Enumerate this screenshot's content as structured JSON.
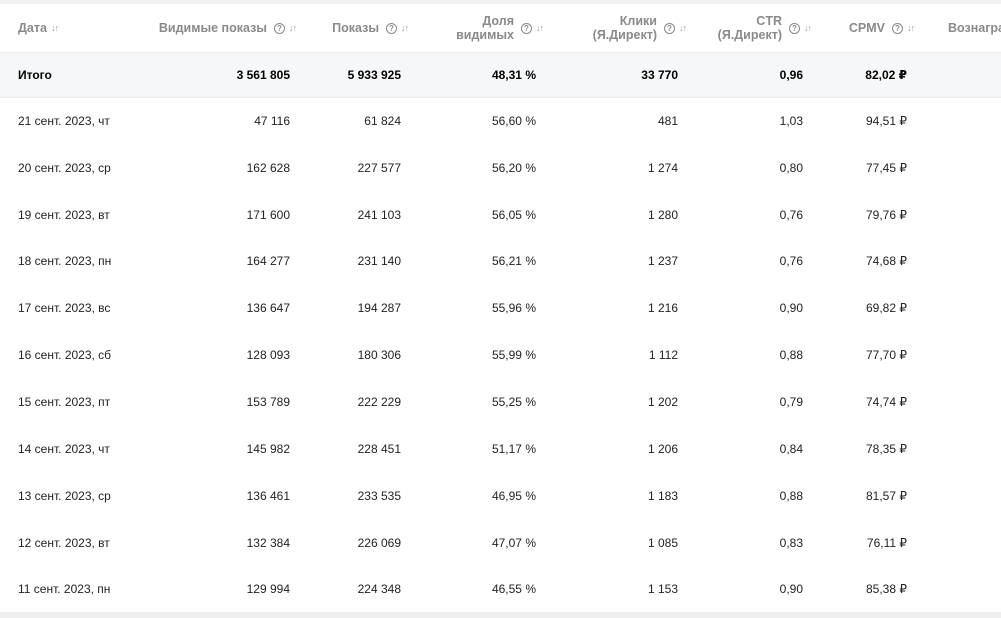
{
  "table": {
    "headers": {
      "date": "Дата",
      "visible_shows": "Видимые показы",
      "shows": "Показы",
      "visible_share_1": "Доля",
      "visible_share_2": "видимых",
      "clicks_1": "Клики",
      "clicks_2": "(Я.Директ)",
      "ctr_1": "CTR",
      "ctr_2": "(Я.Директ)",
      "cpmv": "CPMV",
      "reward": "Вознагра"
    },
    "total": {
      "label": "Итого",
      "visible_shows": "3 561 805",
      "shows": "5 933 925",
      "visible_share": "48,31 %",
      "clicks": "33 770",
      "ctr": "0,96",
      "cpmv": "82,02 ₽"
    },
    "rows": [
      {
        "date": "21 сент. 2023, чт",
        "visible_shows": "47 116",
        "shows": "61 824",
        "visible_share": "56,60 %",
        "clicks": "481",
        "ctr": "1,03",
        "cpmv": "94,51 ₽"
      },
      {
        "date": "20 сент. 2023, ср",
        "visible_shows": "162 628",
        "shows": "227 577",
        "visible_share": "56,20 %",
        "clicks": "1 274",
        "ctr": "0,80",
        "cpmv": "77,45 ₽"
      },
      {
        "date": "19 сент. 2023, вт",
        "visible_shows": "171 600",
        "shows": "241 103",
        "visible_share": "56,05 %",
        "clicks": "1 280",
        "ctr": "0,76",
        "cpmv": "79,76 ₽"
      },
      {
        "date": "18 сент. 2023, пн",
        "visible_shows": "164 277",
        "shows": "231 140",
        "visible_share": "56,21 %",
        "clicks": "1 237",
        "ctr": "0,76",
        "cpmv": "74,68 ₽"
      },
      {
        "date": "17 сент. 2023, вс",
        "visible_shows": "136 647",
        "shows": "194 287",
        "visible_share": "55,96 %",
        "clicks": "1 216",
        "ctr": "0,90",
        "cpmv": "69,82 ₽"
      },
      {
        "date": "16 сент. 2023, сб",
        "visible_shows": "128 093",
        "shows": "180 306",
        "visible_share": "55,99 %",
        "clicks": "1 112",
        "ctr": "0,88",
        "cpmv": "77,70 ₽"
      },
      {
        "date": "15 сент. 2023, пт",
        "visible_shows": "153 789",
        "shows": "222 229",
        "visible_share": "55,25 %",
        "clicks": "1 202",
        "ctr": "0,79",
        "cpmv": "74,74 ₽"
      },
      {
        "date": "14 сент. 2023, чт",
        "visible_shows": "145 982",
        "shows": "228 451",
        "visible_share": "51,17 %",
        "clicks": "1 206",
        "ctr": "0,84",
        "cpmv": "78,35 ₽"
      },
      {
        "date": "13 сент. 2023, ср",
        "visible_shows": "136 461",
        "shows": "233 535",
        "visible_share": "46,95 %",
        "clicks": "1 183",
        "ctr": "0,88",
        "cpmv": "81,57 ₽"
      },
      {
        "date": "12 сент. 2023, вт",
        "visible_shows": "132 384",
        "shows": "226 069",
        "visible_share": "47,07 %",
        "clicks": "1 085",
        "ctr": "0,83",
        "cpmv": "76,11 ₽"
      },
      {
        "date": "11 сент. 2023, пн",
        "visible_shows": "129 994",
        "shows": "224 348",
        "visible_share": "46,55 %",
        "clicks": "1 153",
        "ctr": "0,90",
        "cpmv": "85,38 ₽"
      }
    ]
  },
  "icons": {
    "help": "question-circle-icon",
    "sort": "sort-arrows-icon"
  }
}
